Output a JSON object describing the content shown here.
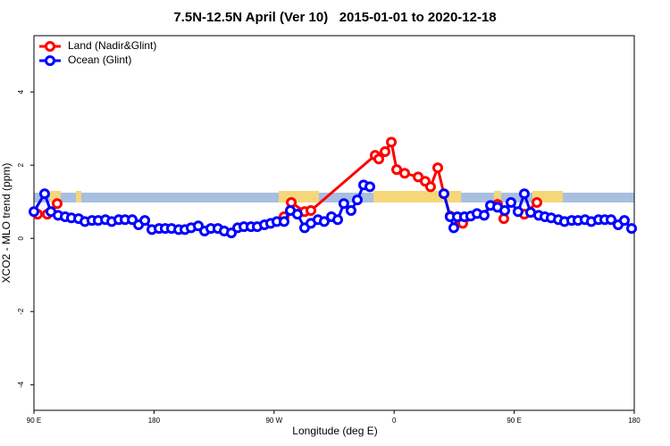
{
  "chart_data": {
    "type": "line",
    "title": "7.5N-12.5N April (Ver 10)   2015-01-01 to 2020-12-18",
    "x_label": "Longitude (deg E)",
    "y_label": "XCO2 - MLO trend (ppm)",
    "xlim": [
      90,
      540
    ],
    "ylim": [
      -4.7,
      5.54
    ],
    "xticks": [
      {
        "value": 90,
        "label": "90 E"
      },
      180,
      {
        "value": 270,
        "label": "90 W"
      },
      {
        "value": 360,
        "label": "0"
      },
      {
        "value": 450,
        "label": "90 E"
      },
      {
        "value": 540,
        "label": "180"
      }
    ],
    "yticks": [
      -4,
      -2,
      0,
      2,
      4
    ],
    "legend": "top-left",
    "series": [
      {
        "name": "Land (Nadir&Glint)",
        "color": "#ff0000",
        "x": [
          92.7,
          100,
          107.4,
          126.2,
          277.5,
          282.9,
          292.9,
          297.6,
          345.8,
          348.5,
          353.2,
          357.9,
          361.9,
          367.9,
          378,
          383.3,
          387.3,
          392.7,
          397.3,
          402,
          406,
          411.4,
          437.5,
          442.2,
          452.9,
          457.6,
          467,
          485.8
        ],
        "values": [
          0.66,
          0.66,
          0.95,
          null,
          0.59,
          0.98,
          0.73,
          0.76,
          2.27,
          2.17,
          2.37,
          2.63,
          1.88,
          1.78,
          1.68,
          1.56,
          1.41,
          1.93,
          1.22,
          0.61,
          0.49,
          0.41,
          0.93,
          0.54,
          null,
          0.66,
          0.98,
          null
        ]
      },
      {
        "name": "Ocean (Glint)",
        "color": "#0000ff",
        "x": [
          90,
          98,
          102.7,
          108.1,
          113.4,
          118.1,
          123.5,
          128.2,
          133.5,
          138.2,
          143.6,
          148.3,
          153.6,
          158.3,
          163.7,
          168.4,
          173.1,
          178.4,
          183.8,
          188.4,
          193.1,
          198.5,
          203.2,
          207.8,
          213.2,
          217.9,
          222.6,
          227.9,
          232.6,
          238,
          242.7,
          247.4,
          252.7,
          257.4,
          262.8,
          267.4,
          272.1,
          277.5,
          282.2,
          287.5,
          292.9,
          297.6,
          302.9,
          307.6,
          313,
          317.7,
          322.3,
          327.7,
          332.4,
          337.1,
          341.8,
          370,
          397.3,
          402,
          404.7,
          407.4,
          412.7,
          417.4,
          422.1,
          427.5,
          432.2,
          437.5,
          442.9,
          447.6,
          452.9,
          457.6,
          462.3,
          468.3,
          473,
          477.7,
          483.1,
          487.7,
          493.1,
          497.8,
          503.1,
          507.8,
          513.2,
          517.9,
          522.6,
          527.9,
          532.6,
          538
        ],
        "values": [
          0.73,
          1.22,
          0.73,
          0.63,
          0.59,
          0.56,
          0.54,
          0.46,
          0.49,
          0.49,
          0.51,
          0.46,
          0.51,
          0.51,
          0.51,
          0.37,
          0.49,
          0.24,
          0.27,
          0.27,
          0.27,
          0.24,
          0.24,
          0.29,
          0.34,
          0.2,
          0.27,
          0.27,
          0.2,
          0.15,
          0.29,
          0.32,
          0.32,
          0.32,
          0.37,
          0.41,
          0.46,
          0.46,
          0.76,
          0.66,
          0.29,
          0.41,
          0.51,
          0.46,
          0.59,
          0.51,
          0.95,
          0.76,
          1.05,
          1.46,
          1.41,
          null,
          1.22,
          0.59,
          0.29,
          0.59,
          0.59,
          0.61,
          0.68,
          0.63,
          0.9,
          0.85,
          0.76,
          0.98,
          0.73,
          1.22,
          0.71,
          0.63,
          0.59,
          0.56,
          0.51,
          0.46,
          0.49,
          0.49,
          0.51,
          0.46,
          0.51,
          0.51,
          0.51,
          0.37,
          0.49,
          0.27
        ]
      }
    ]
  }
}
